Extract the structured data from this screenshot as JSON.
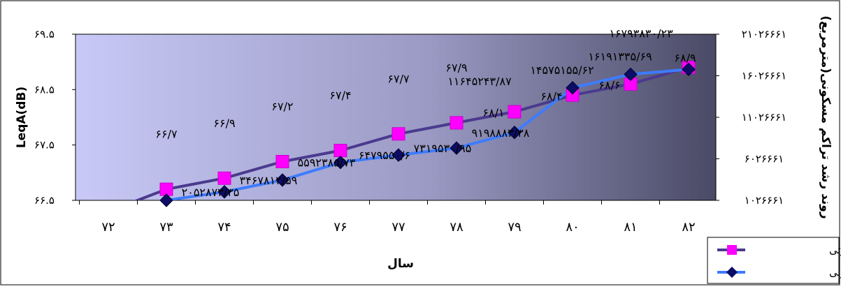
{
  "chart_data": {
    "type": "line",
    "x_label": "سال",
    "y_left_label": "LeqA(dB)",
    "y_right_label": "روند رشد تراکم مسکونی(مترمربع)",
    "x_ticks": [
      "۷۲",
      "۷۳",
      "۷۴",
      "۷۵",
      "۷۶",
      "۷۷",
      "۷۸",
      "۷۹",
      "۸۰",
      "۸۱",
      "۸۲"
    ],
    "x_values": [
      72,
      73,
      74,
      75,
      76,
      77,
      78,
      79,
      80,
      81,
      82
    ],
    "y_left_range": [
      66.5,
      69.5
    ],
    "y_left_ticks": [
      {
        "value": 66.5,
        "label": "۶۶.۵"
      },
      {
        "value": 67.5,
        "label": "۶۷.۵"
      },
      {
        "value": 68.5,
        "label": "۶۸.۵"
      },
      {
        "value": 69.5,
        "label": "۶۹.۵"
      }
    ],
    "y_right_range": [
      1026661,
      21026661
    ],
    "y_right_ticks": [
      {
        "value": 1026661,
        "label": "۱۰۲۶۶۶۱"
      },
      {
        "value": 6026661,
        "label": "۶۰۲۶۶۶۱"
      },
      {
        "value": 11026661,
        "label": "۱۱۰۲۶۶۶۱"
      },
      {
        "value": 16026661,
        "label": "۱۶۰۲۶۶۶۱"
      },
      {
        "value": 21026661,
        "label": "۲۱۰۲۶۶۶۱"
      }
    ],
    "legend_position": "bottom-right",
    "series": [
      {
        "name": "آلودگی صوتی",
        "axis": "left",
        "color": "#ff00ff",
        "line_color": "#4b3a8e",
        "marker": "square",
        "values": [
          66.3,
          66.7,
          66.9,
          67.2,
          67.4,
          67.7,
          67.9,
          68.1,
          68.4,
          68.6,
          68.9
        ],
        "labels": [
          "",
          "۶۶/۷",
          "۶۶/۹",
          "۶۷/۲",
          "۶۷/۴",
          "۶۷/۷",
          "۶۷/۹",
          "۶۸/۱",
          "۶۸/۴",
          "۶۸/۶",
          "۶۸/۹"
        ]
      },
      {
        "name": "تراکم مسکونی",
        "axis": "right",
        "color": "#0d0d66",
        "line_color": "#3d7cff",
        "marker": "diamond",
        "values": [
          -1500000,
          1026661,
          2052873.35,
          3467812.59,
          5592385.73,
          6479550.6,
          7319530.95,
          9198883.38,
          14575155.62,
          16191335.69,
          16793830.23
        ],
        "labels": [
          "",
          "",
          "۲۰۵۲۸۷۳/۳۵",
          "۳۴۶۷۸۱۲/۵۹",
          "۵۵۹۲۳۸۵/۷۳",
          "۶۴۷۹۵۵۰/۶",
          "۷۳۱۹۵۳۰/۹۵",
          "۹۱۹۸۸۸۳/۳۸",
          "۱۴۵۷۵۱۵۵/۶۲",
          "۱۶۱۹۱۳۳۵/۶۹",
          "۱۶۷۹۳۸۳۰/۲۳"
        ]
      }
    ],
    "extra_labels": [
      {
        "text": "۱۱۶۴۵۲۴۳/۸۷",
        "axis": "right",
        "x": 79,
        "y": 15300000
      }
    ]
  }
}
